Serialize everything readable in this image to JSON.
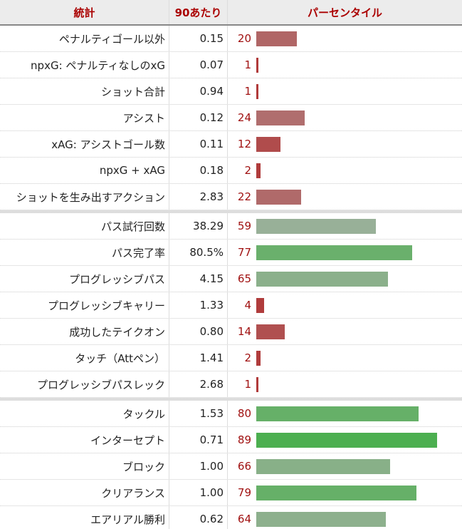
{
  "header": {
    "stat": "統計",
    "per90": "90あたり",
    "percentile": "パーセンタイル"
  },
  "groups": [
    [
      {
        "stat": "ペナルティゴール以外",
        "per90": "0.15",
        "pct": 20,
        "color": "#b06666"
      },
      {
        "stat": "npxG: ペナルティなしのxG",
        "per90": "0.07",
        "pct": 1,
        "color": "#b03a3a"
      },
      {
        "stat": "ショット合計",
        "per90": "0.94",
        "pct": 1,
        "color": "#b03a3a"
      },
      {
        "stat": "アシスト",
        "per90": "0.12",
        "pct": 24,
        "color": "#b06e6e"
      },
      {
        "stat": "xAG: アシストゴール数",
        "per90": "0.11",
        "pct": 12,
        "color": "#b04c4c"
      },
      {
        "stat": "npxG + xAG",
        "per90": "0.18",
        "pct": 2,
        "color": "#b03c3c"
      },
      {
        "stat": "ショットを生み出すアクション",
        "per90": "2.83",
        "pct": 22,
        "color": "#b06a6a"
      }
    ],
    [
      {
        "stat": "パス試行回数",
        "per90": "38.29",
        "pct": 59,
        "color": "#98b098"
      },
      {
        "stat": "パス完了率",
        "per90": "80.5%",
        "pct": 77,
        "color": "#6ab06c"
      },
      {
        "stat": "プログレッシブパス",
        "per90": "4.15",
        "pct": 65,
        "color": "#8bb08b"
      },
      {
        "stat": "プログレッシブキャリー",
        "per90": "1.33",
        "pct": 4,
        "color": "#b03c3c"
      },
      {
        "stat": "成功したテイクオン",
        "per90": "0.80",
        "pct": 14,
        "color": "#b05050"
      },
      {
        "stat": "タッチ（Attペン）",
        "per90": "1.41",
        "pct": 2,
        "color": "#b03c3c"
      },
      {
        "stat": "プログレッシブパスレック",
        "per90": "2.68",
        "pct": 1,
        "color": "#b03a3a"
      }
    ],
    [
      {
        "stat": "タックル",
        "per90": "1.53",
        "pct": 80,
        "color": "#66b068"
      },
      {
        "stat": "インターセプト",
        "per90": "0.71",
        "pct": 89,
        "color": "#4caf50"
      },
      {
        "stat": "ブロック",
        "per90": "1.00",
        "pct": 66,
        "color": "#88b088"
      },
      {
        "stat": "クリアランス",
        "per90": "1.00",
        "pct": 79,
        "color": "#66b068"
      },
      {
        "stat": "エアリアル勝利",
        "per90": "0.62",
        "pct": 64,
        "color": "#8db08d"
      }
    ]
  ]
}
